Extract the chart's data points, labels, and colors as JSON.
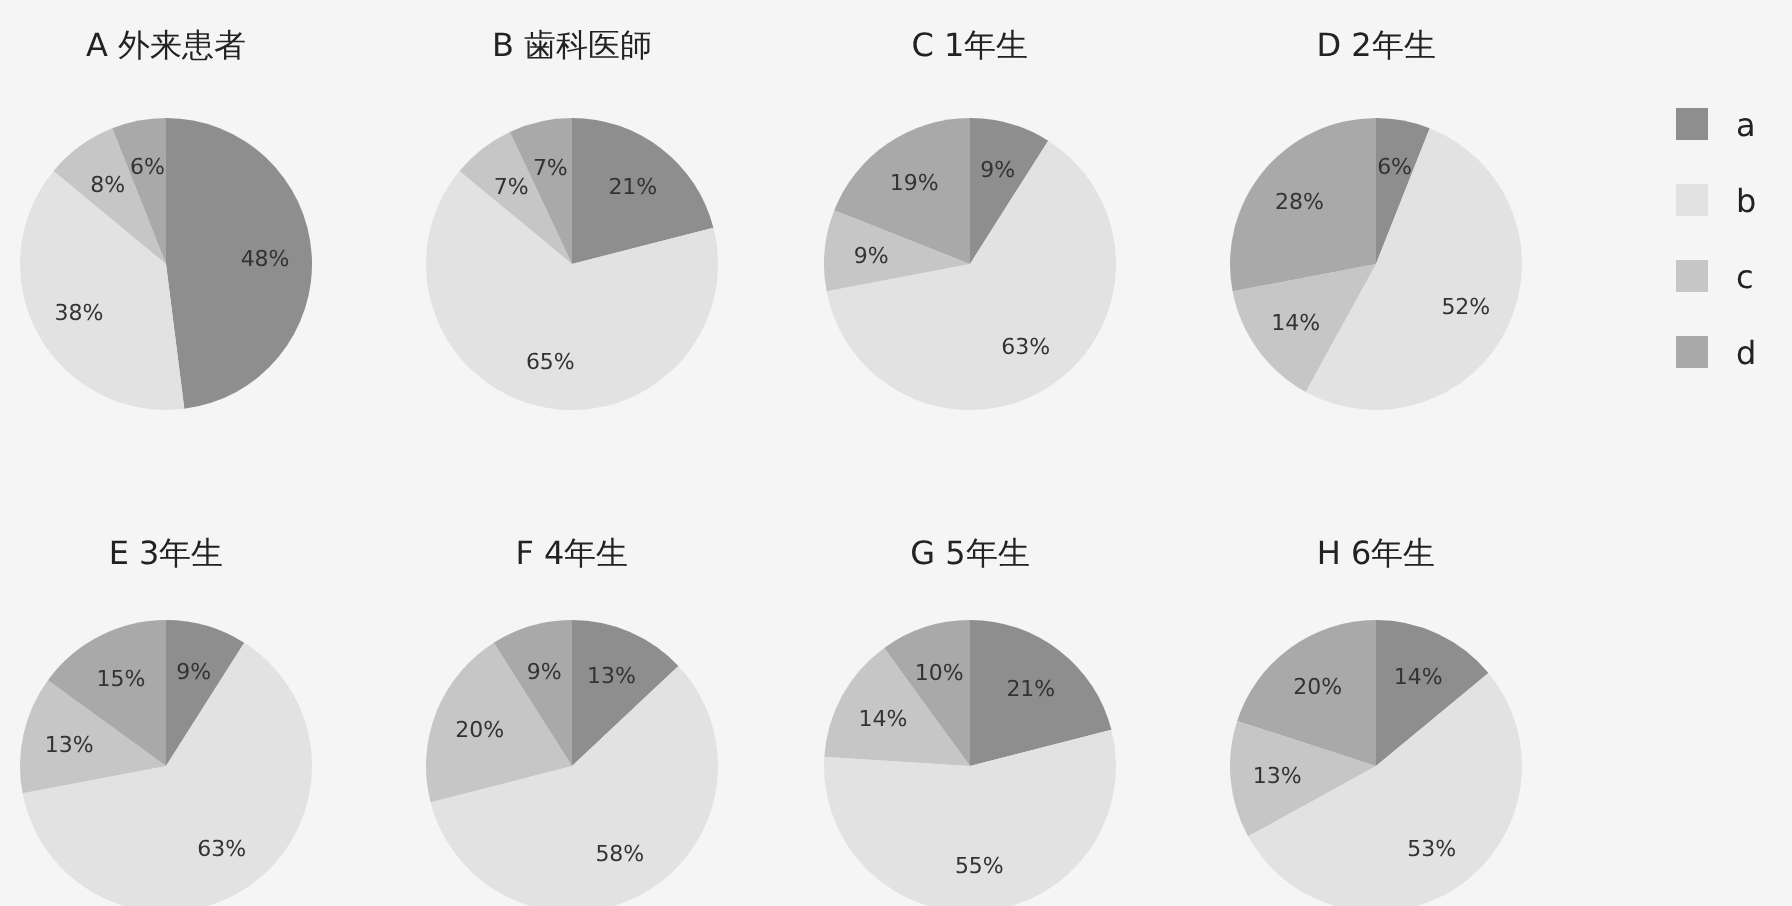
{
  "chart_data": [
    {
      "type": "pie",
      "title": "A 外来患者",
      "categories": [
        null,
        null,
        null,
        null
      ],
      "values": [
        48,
        38,
        8,
        6
      ],
      "colors": [
        "#8e8e8e",
        "#e2e2e2",
        "#c6c6c6",
        "#a9a9a9"
      ],
      "value_labels": [
        "48%",
        "38%",
        "8%",
        "6%"
      ]
    },
    {
      "type": "pie",
      "title": "B 歯科医師",
      "categories": [
        null,
        null,
        null,
        null
      ],
      "values": [
        21,
        65,
        7,
        7
      ],
      "colors": [
        "#8e8e8e",
        "#e2e2e2",
        "#c6c6c6",
        "#a9a9a9"
      ],
      "value_labels": [
        "21%",
        "65%",
        "7%",
        "7%"
      ]
    },
    {
      "type": "pie",
      "title": "C 1年生",
      "categories": [
        null,
        null,
        null,
        null
      ],
      "values": [
        9,
        63,
        9,
        19
      ],
      "colors": [
        "#8e8e8e",
        "#e2e2e2",
        "#c6c6c6",
        "#a9a9a9"
      ],
      "value_labels": [
        "9%",
        "63%",
        "9%",
        "19%"
      ]
    },
    {
      "type": "pie",
      "title": "D 2年生",
      "categories": [
        "a",
        "b",
        "c",
        "d"
      ],
      "values": [
        6,
        52,
        14,
        28
      ],
      "colors": [
        "#8e8e8e",
        "#e2e2e2",
        "#c6c6c6",
        "#a9a9a9"
      ],
      "value_labels": [
        "6%",
        "52%",
        "14%",
        "28%"
      ],
      "legend": "right"
    },
    {
      "type": "pie",
      "title": "E 3年生",
      "categories": [
        null,
        null,
        null,
        null
      ],
      "values": [
        9,
        63,
        13,
        15
      ],
      "colors": [
        "#8e8e8e",
        "#e2e2e2",
        "#c6c6c6",
        "#a9a9a9"
      ],
      "value_labels": [
        "9%",
        "63%",
        "13%",
        "15%"
      ]
    },
    {
      "type": "pie",
      "title": "F 4年生",
      "categories": [
        null,
        null,
        null,
        null
      ],
      "values": [
        13,
        58,
        20,
        9
      ],
      "colors": [
        "#8e8e8e",
        "#e2e2e2",
        "#c6c6c6",
        "#a9a9a9"
      ],
      "value_labels": [
        "13%",
        "58%",
        "20%",
        "9%"
      ]
    },
    {
      "type": "pie",
      "title": "G 5年生",
      "categories": [
        null,
        null,
        null,
        null
      ],
      "values": [
        21,
        55,
        14,
        10
      ],
      "colors": [
        "#8e8e8e",
        "#e2e2e2",
        "#c6c6c6",
        "#a9a9a9"
      ],
      "value_labels": [
        "21%",
        "55%",
        "14%",
        "10%"
      ]
    },
    {
      "type": "pie",
      "title": "H 6年生",
      "categories": [
        null,
        null,
        null,
        null
      ],
      "values": [
        14,
        53,
        13,
        20
      ],
      "colors": [
        "#8e8e8e",
        "#e2e2e2",
        "#c6c6c6",
        "#a9a9a9"
      ],
      "value_labels": [
        "14%",
        "53%",
        "13%",
        "20%"
      ]
    }
  ]
}
